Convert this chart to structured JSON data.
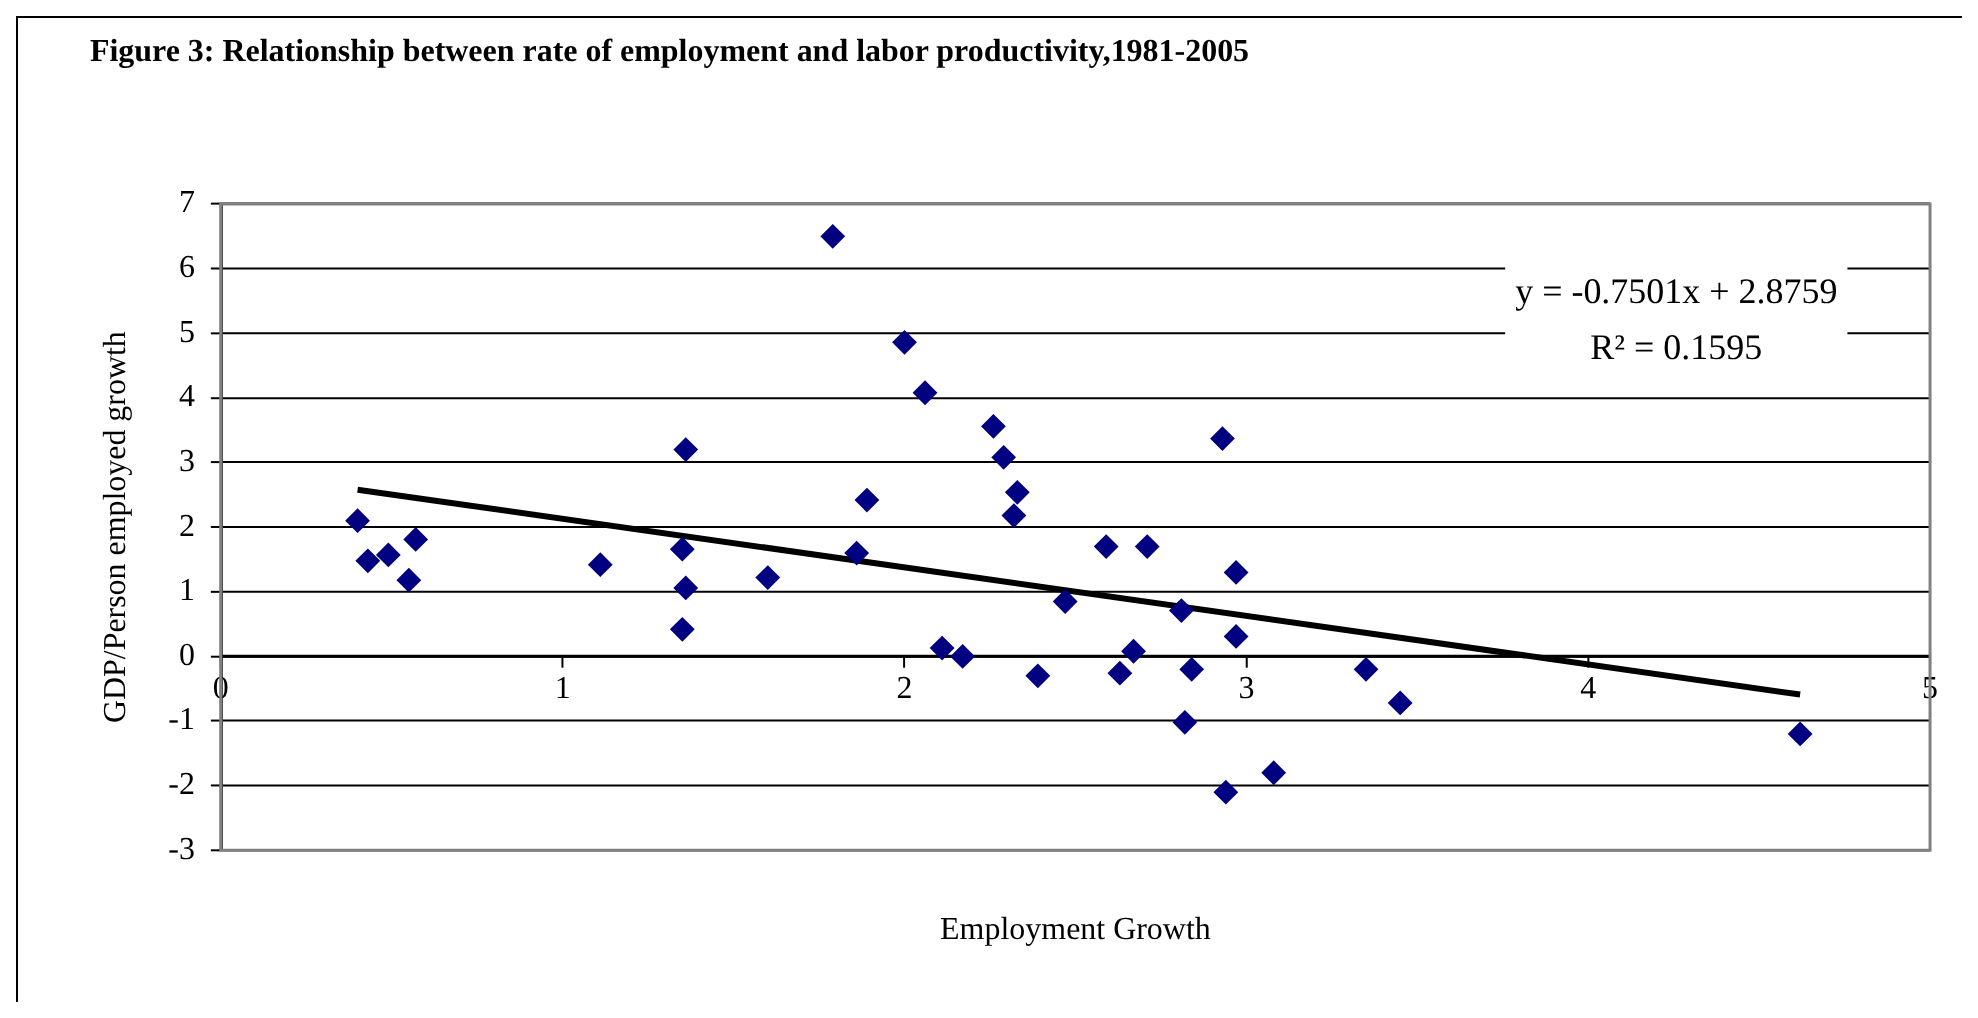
{
  "chart_data": {
    "type": "scatter",
    "title": "Figure 3: Relationship between rate of employment and labor productivity,1981-2005",
    "xlabel": "Employment Growth",
    "ylabel": "GDP/Person employed growth",
    "xlim": [
      0,
      5
    ],
    "xticks": [
      0,
      1,
      2,
      3,
      4,
      5
    ],
    "ylim": [
      -3,
      7
    ],
    "yticks": [
      -3,
      -2,
      -1,
      0,
      1,
      2,
      3,
      4,
      5,
      6,
      7
    ],
    "grid": "y",
    "legend": false,
    "annotations": [
      "y = -0.7501x + 2.8759",
      "R² = 0.1595"
    ],
    "series": [
      {
        "color": "#000080",
        "marker": "diamond",
        "x": [
          0.4,
          0.43,
          0.49,
          0.55,
          0.57,
          1.11,
          1.35,
          1.36,
          1.36,
          1.35,
          1.59,
          1.6,
          1.79,
          1.86,
          1.89,
          2.0,
          2.06,
          2.11,
          2.17,
          2.26,
          2.29,
          2.33,
          2.32,
          2.39,
          2.47,
          2.59,
          2.63,
          2.67,
          2.71,
          2.81,
          2.82,
          2.84,
          2.93,
          2.94,
          2.97,
          2.97,
          3.08,
          3.35,
          3.45,
          4.62
        ],
        "values": [
          2.1,
          1.48,
          1.57,
          1.18,
          1.81,
          1.42,
          1.66,
          3.2,
          1.06,
          0.42,
          null,
          1.22,
          6.5,
          1.6,
          2.42,
          4.86,
          4.08,
          0.13,
          0.0,
          3.56,
          3.08,
          2.54,
          2.18,
          -0.3,
          0.85,
          1.7,
          -0.26,
          0.08,
          1.7,
          0.71,
          -1.02,
          -0.2,
          3.37,
          -2.1,
          1.3,
          0.31,
          -1.8,
          -0.2,
          -0.72,
          -1.2
        ]
      },
      {
        "type": "line",
        "color": "#000000",
        "marker": "none",
        "x": [
          0.4,
          4.62
        ],
        "values": [
          2.58,
          -0.59
        ]
      }
    ]
  }
}
